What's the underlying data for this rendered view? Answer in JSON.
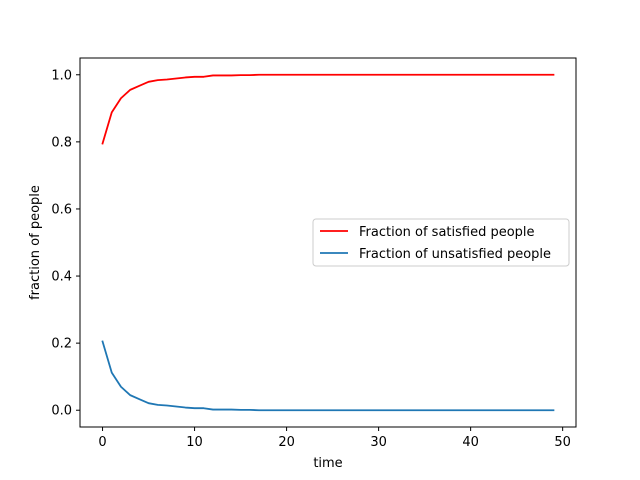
{
  "chart_data": {
    "type": "line",
    "title": "",
    "xlabel": "time",
    "ylabel": "fraction of people",
    "xlim": [
      -2.45,
      51.45
    ],
    "ylim": [
      -0.05,
      1.05
    ],
    "xticks": [
      0,
      10,
      20,
      30,
      40,
      50
    ],
    "xtick_labels": [
      "0",
      "10",
      "20",
      "30",
      "40",
      "50"
    ],
    "yticks": [
      0.0,
      0.2,
      0.4,
      0.6,
      0.8,
      1.0
    ],
    "ytick_labels": [
      "0.0",
      "0.2",
      "0.4",
      "0.6",
      "0.8",
      "1.0"
    ],
    "grid": false,
    "legend_position": "center-right",
    "x": [
      0,
      1,
      2,
      3,
      4,
      5,
      6,
      7,
      8,
      9,
      10,
      11,
      12,
      13,
      14,
      15,
      16,
      17,
      18,
      19,
      20,
      21,
      22,
      23,
      24,
      25,
      26,
      27,
      28,
      29,
      30,
      31,
      32,
      33,
      34,
      35,
      36,
      37,
      38,
      39,
      40,
      41,
      42,
      43,
      44,
      45,
      46,
      47,
      48,
      49
    ],
    "series": [
      {
        "name": "Fraction of satisfied people",
        "color": "#ff0000",
        "values": [
          0.795,
          0.888,
          0.93,
          0.955,
          0.967,
          0.979,
          0.984,
          0.986,
          0.989,
          0.992,
          0.994,
          0.994,
          0.998,
          0.998,
          0.998,
          0.999,
          0.999,
          1.0,
          1.0,
          1.0,
          1.0,
          1.0,
          1.0,
          1.0,
          1.0,
          1.0,
          1.0,
          1.0,
          1.0,
          1.0,
          1.0,
          1.0,
          1.0,
          1.0,
          1.0,
          1.0,
          1.0,
          1.0,
          1.0,
          1.0,
          1.0,
          1.0,
          1.0,
          1.0,
          1.0,
          1.0,
          1.0,
          1.0,
          1.0,
          1.0
        ]
      },
      {
        "name": "Fraction of unsatisfied people",
        "color": "#1f77b4",
        "values": [
          0.205,
          0.112,
          0.07,
          0.045,
          0.033,
          0.021,
          0.016,
          0.014,
          0.011,
          0.008,
          0.006,
          0.006,
          0.002,
          0.002,
          0.002,
          0.001,
          0.001,
          0.0,
          0.0,
          0.0,
          0.0,
          0.0,
          0.0,
          0.0,
          0.0,
          0.0,
          0.0,
          0.0,
          0.0,
          0.0,
          0.0,
          0.0,
          0.0,
          0.0,
          0.0,
          0.0,
          0.0,
          0.0,
          0.0,
          0.0,
          0.0,
          0.0,
          0.0,
          0.0,
          0.0,
          0.0,
          0.0,
          0.0,
          0.0,
          0.0
        ]
      }
    ]
  }
}
